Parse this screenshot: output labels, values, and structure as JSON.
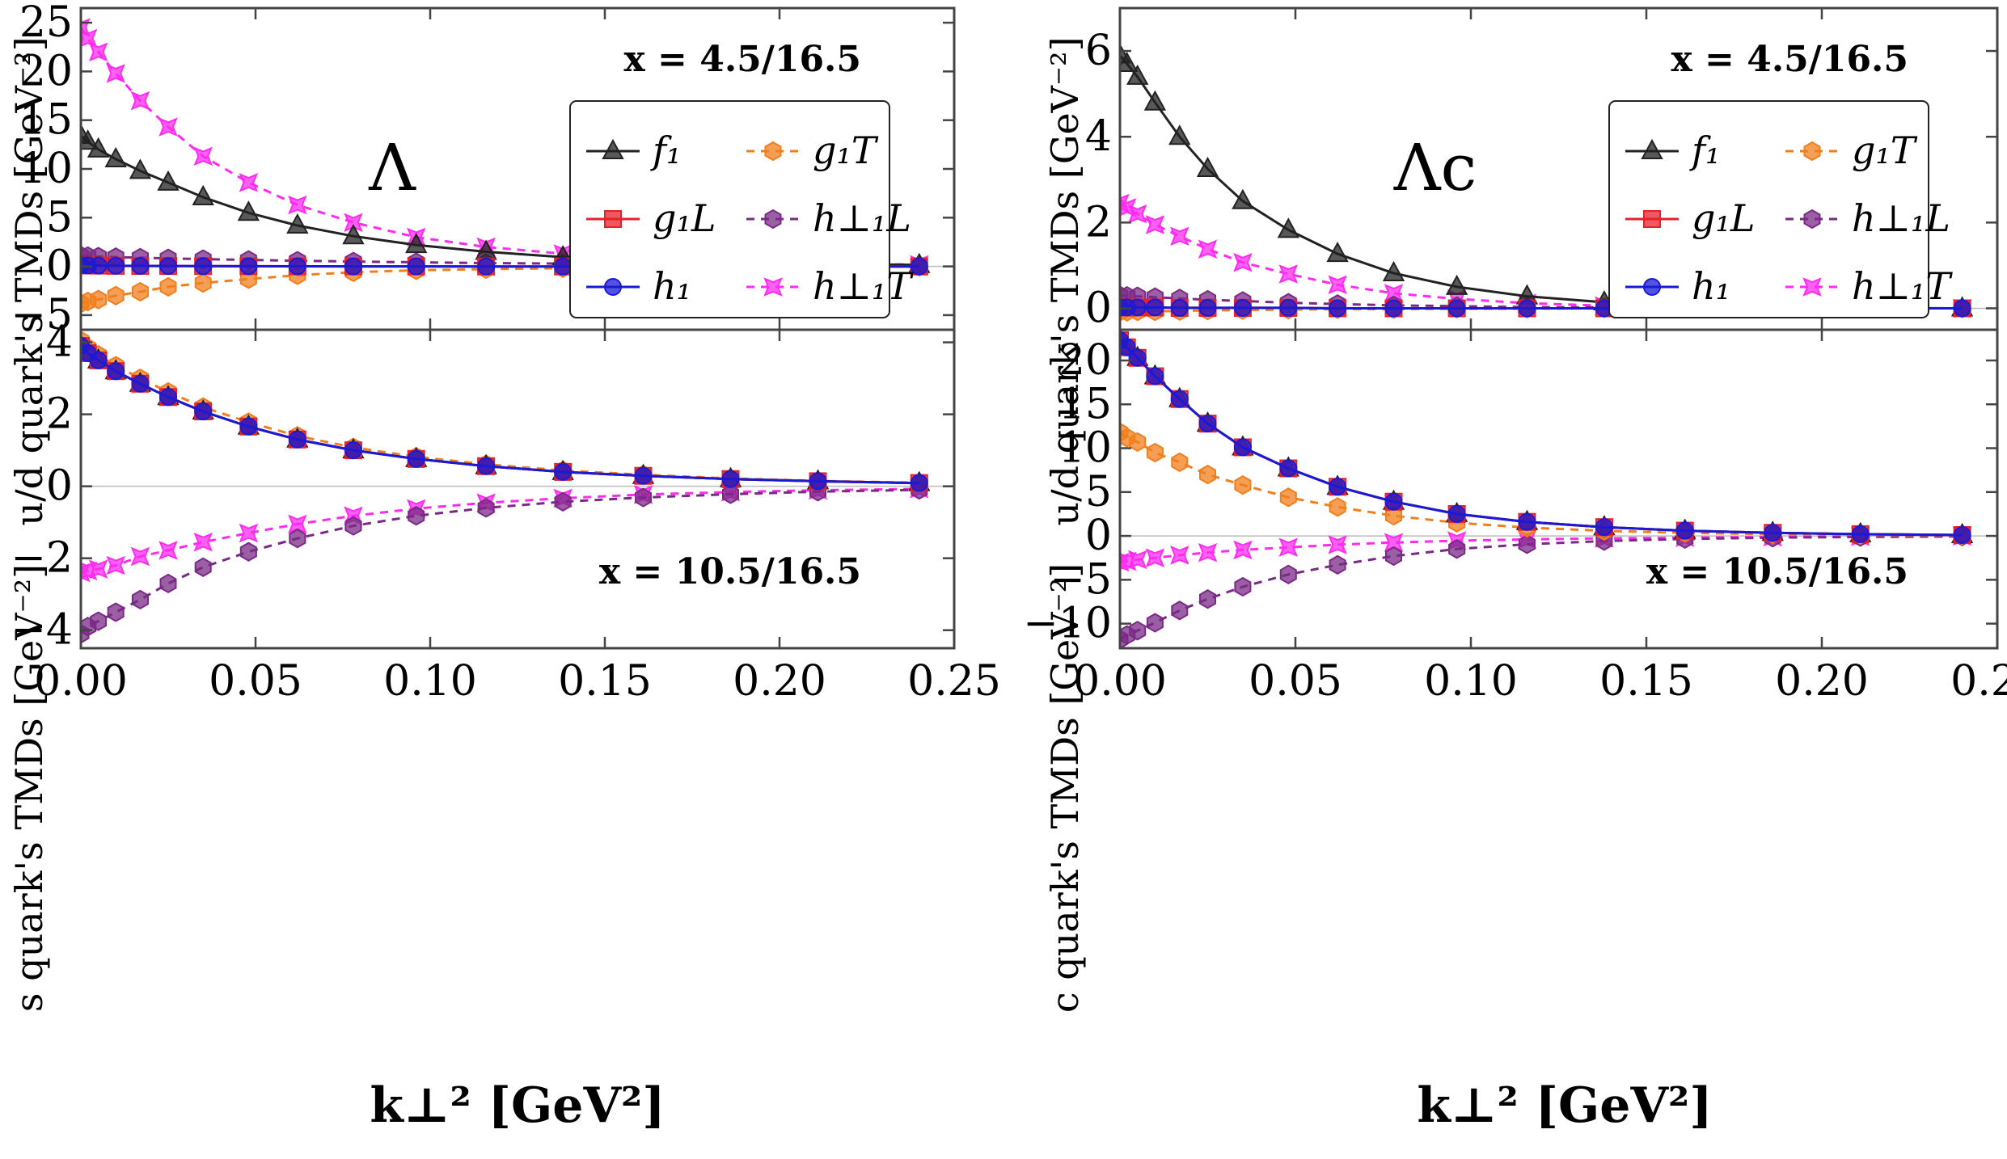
{
  "figure": {
    "xlabel": "k⊥² [GeV²]",
    "xticks": [
      "0.00",
      "0.05",
      "0.10",
      "0.15",
      "0.20",
      "0.25"
    ]
  },
  "colors": {
    "f1": "#222222",
    "g1L": "#e8202a",
    "h1": "#1a1ad6",
    "g1T": "#f07f1c",
    "h1Lperp": "#7a2a86",
    "h1Tperp": "#ff2bf0"
  },
  "chart_data": [
    {
      "type": "line",
      "title": "x = 4.5/16.5",
      "hadron": "Λ",
      "ylabel": "u/d quark's TMDs [GeV⁻²]",
      "xlim": [
        0,
        0.25
      ],
      "ylim": [
        -6.5,
        26.5
      ],
      "yticks": [
        -5,
        0,
        5,
        10,
        15,
        20,
        25
      ],
      "legend": [
        {
          "key": "f1",
          "label": "f₁"
        },
        {
          "key": "g1T",
          "label": "g₁T"
        },
        {
          "key": "g1L",
          "label": "g₁L"
        },
        {
          "key": "h1Lperp",
          "label": "h⊥₁L"
        },
        {
          "key": "h1",
          "label": "h₁"
        },
        {
          "key": "h1Tperp",
          "label": "h⊥₁T"
        }
      ],
      "x": [
        0.0,
        0.002,
        0.005,
        0.01,
        0.017,
        0.025,
        0.035,
        0.048,
        0.062,
        0.078,
        0.096,
        0.116,
        0.138,
        0.161,
        0.186,
        0.211,
        0.24
      ],
      "series": [
        {
          "key": "f1",
          "name": "f₁",
          "values": [
            13.4,
            12.8,
            12.0,
            11.0,
            9.8,
            8.6,
            7.1,
            5.5,
            4.2,
            3.1,
            2.2,
            1.5,
            0.95,
            0.6,
            0.38,
            0.25,
            0.15
          ]
        },
        {
          "key": "g1L",
          "name": "g₁L",
          "values": [
            0.1,
            0.1,
            0.08,
            0.06,
            0.05,
            0.04,
            0.03,
            0.02,
            0.01,
            0.0,
            0.0,
            -0.01,
            -0.01,
            -0.01,
            -0.01,
            -0.01,
            -0.01
          ]
        },
        {
          "key": "h1",
          "name": "h₁",
          "values": [
            0.1,
            0.1,
            0.08,
            0.06,
            0.05,
            0.04,
            0.03,
            0.02,
            0.01,
            0.0,
            0.0,
            -0.01,
            -0.01,
            -0.01,
            -0.01,
            -0.01,
            -0.01
          ]
        },
        {
          "key": "g1T",
          "name": "g₁T",
          "values": [
            -3.8,
            -3.6,
            -3.4,
            -3.0,
            -2.6,
            -2.1,
            -1.7,
            -1.3,
            -0.9,
            -0.6,
            -0.4,
            -0.28,
            -0.18,
            -0.12,
            -0.08,
            -0.05,
            -0.03
          ]
        },
        {
          "key": "h1Lperp",
          "name": "h⊥₁L",
          "values": [
            1.1,
            1.05,
            1.0,
            0.95,
            0.9,
            0.82,
            0.75,
            0.66,
            0.58,
            0.5,
            0.42,
            0.34,
            0.28,
            0.22,
            0.17,
            0.13,
            0.1
          ]
        },
        {
          "key": "h1Tperp",
          "name": "h⊥₁T",
          "values": [
            24.5,
            23.4,
            22.0,
            19.8,
            17.0,
            14.3,
            11.3,
            8.6,
            6.3,
            4.5,
            3.0,
            2.0,
            1.3,
            0.8,
            0.5,
            0.3,
            0.18
          ]
        }
      ]
    },
    {
      "type": "line",
      "title": "x = 10.5/16.5",
      "ylabel": "s quark's TMDs [GeV⁻²]",
      "xlim": [
        0,
        0.25
      ],
      "ylim": [
        -4.5,
        4.35
      ],
      "yticks": [
        -4,
        -2,
        0,
        2,
        4
      ],
      "x": [
        0.0,
        0.002,
        0.005,
        0.01,
        0.017,
        0.025,
        0.035,
        0.048,
        0.062,
        0.078,
        0.096,
        0.116,
        0.138,
        0.161,
        0.186,
        0.211,
        0.24
      ],
      "series": [
        {
          "key": "f1",
          "name": "f₁",
          "values": [
            3.9,
            3.7,
            3.5,
            3.2,
            2.85,
            2.48,
            2.08,
            1.66,
            1.3,
            1.0,
            0.76,
            0.56,
            0.4,
            0.29,
            0.2,
            0.14,
            0.09
          ]
        },
        {
          "key": "g1L",
          "name": "g₁L",
          "values": [
            3.9,
            3.7,
            3.5,
            3.2,
            2.85,
            2.48,
            2.08,
            1.66,
            1.3,
            1.0,
            0.76,
            0.56,
            0.4,
            0.29,
            0.2,
            0.14,
            0.09
          ]
        },
        {
          "key": "h1",
          "name": "h₁",
          "values": [
            3.9,
            3.7,
            3.5,
            3.2,
            2.85,
            2.48,
            2.08,
            1.66,
            1.3,
            1.0,
            0.76,
            0.56,
            0.4,
            0.29,
            0.2,
            0.14,
            0.09
          ]
        },
        {
          "key": "g1T",
          "name": "g₁T",
          "values": [
            4.05,
            3.85,
            3.65,
            3.35,
            3.0,
            2.62,
            2.2,
            1.78,
            1.4,
            1.08,
            0.82,
            0.61,
            0.44,
            0.32,
            0.22,
            0.15,
            0.1
          ]
        },
        {
          "key": "h1Lperp",
          "name": "h⊥₁L",
          "values": [
            -4.1,
            -3.9,
            -3.75,
            -3.5,
            -3.15,
            -2.7,
            -2.25,
            -1.82,
            -1.45,
            -1.1,
            -0.82,
            -0.6,
            -0.43,
            -0.31,
            -0.22,
            -0.15,
            -0.1
          ]
        },
        {
          "key": "h1Tperp",
          "name": "h⊥₁T",
          "values": [
            -2.4,
            -2.35,
            -2.3,
            -2.2,
            -1.95,
            -1.78,
            -1.55,
            -1.3,
            -1.05,
            -0.82,
            -0.62,
            -0.46,
            -0.33,
            -0.23,
            -0.16,
            -0.11,
            -0.07
          ]
        }
      ]
    },
    {
      "type": "line",
      "title": "x = 4.5/16.5",
      "hadron": "Λc",
      "ylabel": "u/d quark's TMDs [GeV⁻²]",
      "xlim": [
        0,
        0.25
      ],
      "ylim": [
        -0.5,
        7.0
      ],
      "yticks": [
        0,
        2,
        4,
        6
      ],
      "legend": [
        {
          "key": "f1",
          "label": "f₁"
        },
        {
          "key": "g1T",
          "label": "g₁T"
        },
        {
          "key": "g1L",
          "label": "g₁L"
        },
        {
          "key": "h1Lperp",
          "label": "h⊥₁L"
        },
        {
          "key": "h1",
          "label": "h₁"
        },
        {
          "key": "h1Tperp",
          "label": "h⊥₁T"
        }
      ],
      "x": [
        0.0,
        0.002,
        0.005,
        0.01,
        0.017,
        0.025,
        0.035,
        0.048,
        0.062,
        0.078,
        0.096,
        0.116,
        0.138,
        0.161,
        0.186,
        0.211,
        0.24
      ],
      "series": [
        {
          "key": "f1",
          "name": "f₁",
          "values": [
            5.9,
            5.7,
            5.4,
            4.8,
            4.0,
            3.25,
            2.5,
            1.83,
            1.27,
            0.82,
            0.5,
            0.28,
            0.14,
            0.07,
            0.03,
            0.01,
            0.0
          ]
        },
        {
          "key": "g1L",
          "name": "g₁L",
          "values": [
            0.02,
            0.02,
            0.02,
            0.02,
            0.01,
            0.01,
            0.01,
            0.01,
            0.0,
            0.0,
            0.0,
            0.0,
            0.0,
            0.0,
            0.0,
            0.0,
            0.0
          ]
        },
        {
          "key": "h1",
          "name": "h₁",
          "values": [
            0.02,
            0.02,
            0.02,
            0.02,
            0.01,
            0.01,
            0.01,
            0.01,
            0.0,
            0.0,
            0.0,
            0.0,
            0.0,
            0.0,
            0.0,
            0.0,
            0.0
          ]
        },
        {
          "key": "g1T",
          "name": "g₁T",
          "values": [
            -0.08,
            -0.08,
            -0.07,
            -0.07,
            -0.06,
            -0.05,
            -0.04,
            -0.03,
            -0.02,
            -0.02,
            -0.01,
            -0.01,
            0.0,
            0.0,
            0.0,
            0.0,
            0.0
          ]
        },
        {
          "key": "h1Lperp",
          "name": "h⊥₁L",
          "values": [
            0.3,
            0.29,
            0.28,
            0.26,
            0.23,
            0.2,
            0.17,
            0.13,
            0.1,
            0.07,
            0.05,
            0.03,
            0.02,
            0.01,
            0.01,
            0.0,
            0.0
          ]
        },
        {
          "key": "h1Tperp",
          "name": "h⊥₁T",
          "values": [
            2.45,
            2.35,
            2.2,
            1.95,
            1.68,
            1.38,
            1.07,
            0.8,
            0.55,
            0.35,
            0.22,
            0.12,
            0.06,
            0.03,
            0.01,
            0.0,
            0.0
          ]
        }
      ]
    },
    {
      "type": "line",
      "title": "x = 10.5/16.5",
      "ylabel": "c quark's TMDs [GeV⁻²]",
      "xlim": [
        0,
        0.25
      ],
      "ylim": [
        -12.8,
        23.5
      ],
      "yticks": [
        -10,
        -5,
        0,
        5,
        10,
        15,
        20
      ],
      "x": [
        0.0,
        0.002,
        0.005,
        0.01,
        0.017,
        0.025,
        0.035,
        0.048,
        0.062,
        0.078,
        0.096,
        0.116,
        0.138,
        0.161,
        0.186,
        0.211,
        0.24
      ],
      "series": [
        {
          "key": "f1",
          "name": "f₁",
          "values": [
            22.3,
            21.5,
            20.3,
            18.2,
            15.6,
            12.8,
            10.1,
            7.7,
            5.6,
            3.9,
            2.5,
            1.6,
            1.0,
            0.6,
            0.35,
            0.2,
            0.1
          ]
        },
        {
          "key": "g1L",
          "name": "g₁L",
          "values": [
            22.3,
            21.5,
            20.3,
            18.2,
            15.6,
            12.8,
            10.1,
            7.7,
            5.6,
            3.9,
            2.5,
            1.6,
            1.0,
            0.6,
            0.35,
            0.2,
            0.1
          ]
        },
        {
          "key": "h1",
          "name": "h₁",
          "values": [
            22.3,
            21.5,
            20.3,
            18.2,
            15.6,
            12.8,
            10.1,
            7.7,
            5.6,
            3.9,
            2.5,
            1.6,
            1.0,
            0.6,
            0.35,
            0.2,
            0.1
          ]
        },
        {
          "key": "g1T",
          "name": "g₁T",
          "values": [
            11.8,
            11.2,
            10.7,
            9.5,
            8.4,
            7.0,
            5.8,
            4.4,
            3.3,
            2.3,
            1.5,
            0.95,
            0.58,
            0.35,
            0.2,
            0.12,
            0.06
          ]
        },
        {
          "key": "h1Lperp",
          "name": "h⊥₁L",
          "values": [
            -11.8,
            -11.3,
            -10.8,
            -9.9,
            -8.5,
            -7.2,
            -5.8,
            -4.4,
            -3.3,
            -2.3,
            -1.5,
            -0.95,
            -0.58,
            -0.35,
            -0.2,
            -0.12,
            -0.06
          ]
        },
        {
          "key": "h1Tperp",
          "name": "h⊥₁T",
          "values": [
            -3.0,
            -2.9,
            -2.7,
            -2.5,
            -2.2,
            -1.9,
            -1.6,
            -1.3,
            -1.0,
            -0.75,
            -0.55,
            -0.4,
            -0.28,
            -0.19,
            -0.12,
            -0.08,
            -0.04
          ]
        }
      ]
    }
  ]
}
